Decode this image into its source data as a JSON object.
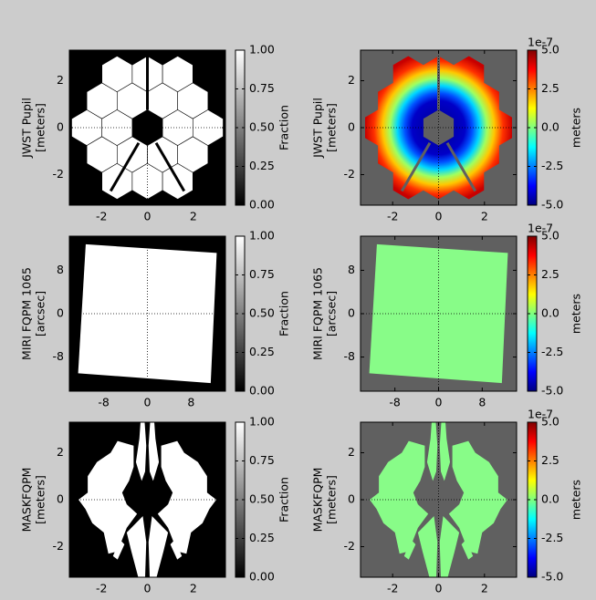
{
  "chart_data": [
    {
      "type": "image",
      "ylabel": [
        "JWST Pupil",
        "[meters]"
      ],
      "xlim": [
        -3.4,
        3.4
      ],
      "ylim": [
        -3.3,
        3.3
      ],
      "xticks": [
        -2,
        0,
        2
      ],
      "yticks": [
        -2,
        0,
        2
      ],
      "colorbar": {
        "label": "Fraction",
        "colormap": "gray",
        "lim": [
          0,
          1
        ],
        "ticks": [
          {
            "value": 0,
            "label": "0.00"
          },
          {
            "value": 0.25,
            "label": "0.25"
          },
          {
            "value": 0.5,
            "label": "0.50"
          },
          {
            "value": 0.75,
            "label": "0.75"
          },
          {
            "value": 1,
            "label": "1.00"
          }
        ]
      }
    },
    {
      "type": "image",
      "ylabel": [
        "JWST Pupil",
        "[meters]"
      ],
      "xlim": [
        -3.4,
        3.4
      ],
      "ylim": [
        -3.3,
        3.3
      ],
      "xticks": [
        -2,
        0,
        2
      ],
      "yticks": [
        -2,
        0,
        2
      ],
      "colorbar": {
        "label": "meters",
        "colormap": "jet",
        "offset_label": "1e-7",
        "lim": [
          -5e-07,
          5e-07
        ],
        "ticks": [
          {
            "value": -5e-07,
            "label": "-5.0"
          },
          {
            "value": -2.5e-07,
            "label": "-2.5"
          },
          {
            "value": 0,
            "label": "0.0"
          },
          {
            "value": 2.5e-07,
            "label": "2.5"
          },
          {
            "value": 5e-07,
            "label": "5.0"
          }
        ]
      }
    },
    {
      "type": "image",
      "ylabel": [
        "MIRI FQPM 1065",
        "[arcsec]"
      ],
      "xlim": [
        -14.3,
        14.3
      ],
      "ylim": [
        -14.3,
        14.3
      ],
      "xticks": [
        -8,
        0,
        8
      ],
      "yticks": [
        -8,
        0,
        8
      ],
      "colorbar": {
        "label": "Fraction",
        "colormap": "gray",
        "lim": [
          0,
          1
        ],
        "ticks": [
          {
            "value": 0,
            "label": "0.00"
          },
          {
            "value": 0.25,
            "label": "0.25"
          },
          {
            "value": 0.5,
            "label": "0.50"
          },
          {
            "value": 0.75,
            "label": "0.75"
          },
          {
            "value": 1,
            "label": "1.00"
          }
        ]
      }
    },
    {
      "type": "image",
      "ylabel": [
        "MIRI FQPM 1065",
        "[arcsec]"
      ],
      "xlim": [
        -14.3,
        14.3
      ],
      "ylim": [
        -14.3,
        14.3
      ],
      "xticks": [
        -8,
        0,
        8
      ],
      "yticks": [
        -8,
        0,
        8
      ],
      "colorbar": {
        "label": "meters",
        "colormap": "jet",
        "offset_label": "1e-7",
        "lim": [
          -5e-07,
          5e-07
        ],
        "ticks": [
          {
            "value": -5e-07,
            "label": "-5.0"
          },
          {
            "value": -2.5e-07,
            "label": "-2.5"
          },
          {
            "value": 0,
            "label": "0.0"
          },
          {
            "value": 2.5e-07,
            "label": "2.5"
          },
          {
            "value": 5e-07,
            "label": "5.0"
          }
        ]
      }
    },
    {
      "type": "image",
      "ylabel": [
        "MASKFQPM",
        "[meters]"
      ],
      "xlim": [
        -3.4,
        3.4
      ],
      "ylim": [
        -3.3,
        3.3
      ],
      "xticks": [
        -2,
        0,
        2
      ],
      "yticks": [
        -2,
        0,
        2
      ],
      "colorbar": {
        "label": "Fraction",
        "colormap": "gray",
        "lim": [
          0,
          1
        ],
        "ticks": [
          {
            "value": 0,
            "label": "0.00"
          },
          {
            "value": 0.25,
            "label": "0.25"
          },
          {
            "value": 0.5,
            "label": "0.50"
          },
          {
            "value": 0.75,
            "label": "0.75"
          },
          {
            "value": 1,
            "label": "1.00"
          }
        ]
      }
    },
    {
      "type": "image",
      "ylabel": [
        "MASKFQPM",
        "[meters]"
      ],
      "xlim": [
        -3.4,
        3.4
      ],
      "ylim": [
        -3.3,
        3.3
      ],
      "xticks": [
        -2,
        0,
        2
      ],
      "yticks": [
        -2,
        0,
        2
      ],
      "colorbar": {
        "label": "meters",
        "colormap": "jet",
        "offset_label": "1e-7",
        "lim": [
          -5e-07,
          5e-07
        ],
        "ticks": [
          {
            "value": -5e-07,
            "label": "-5.0"
          },
          {
            "value": -2.5e-07,
            "label": "-2.5"
          },
          {
            "value": 0,
            "label": "0.0"
          },
          {
            "value": 2.5e-07,
            "label": "2.5"
          },
          {
            "value": 5e-07,
            "label": "5.0"
          }
        ]
      }
    }
  ]
}
